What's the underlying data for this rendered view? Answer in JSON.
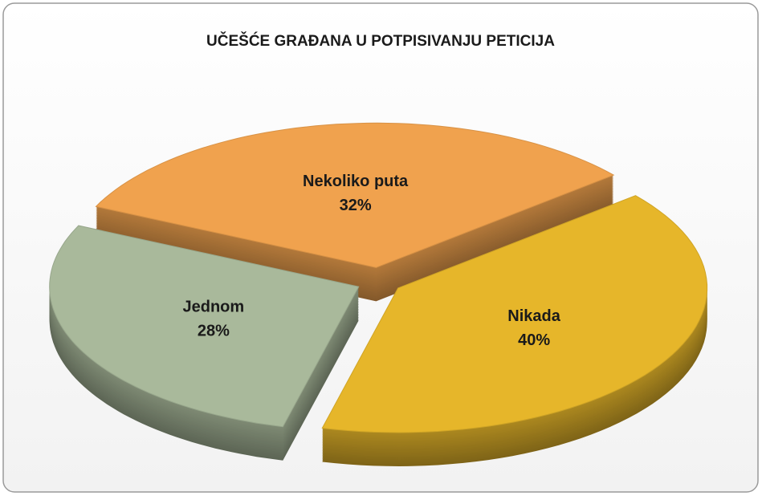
{
  "chart_data": {
    "type": "pie3d",
    "title": "UČEŠĆE GRAĐANA U POTPISIVANJU PETICIJA",
    "categories": [
      "Nekoliko puta",
      "Nikada",
      "Jednom"
    ],
    "values": [
      32,
      40,
      28
    ],
    "value_labels": [
      "32%",
      "40%",
      "28%"
    ],
    "colors": [
      "#f0a24e",
      "#e6b62a",
      "#a9b99b"
    ]
  }
}
